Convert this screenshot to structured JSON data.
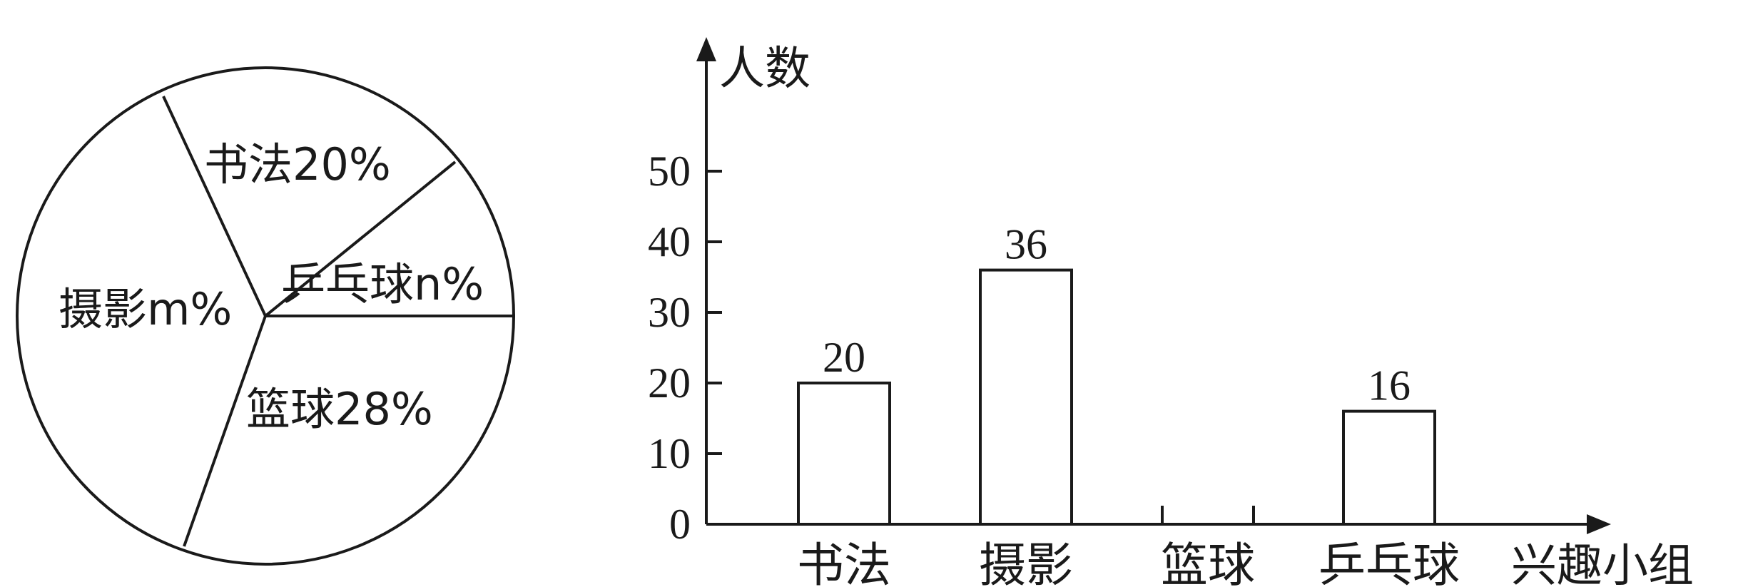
{
  "chart_data": [
    {
      "type": "pie",
      "slices": [
        {
          "label": "书法20%",
          "percent": 20
        },
        {
          "label": "乒乓球n%",
          "percent": null
        },
        {
          "label": "篮球28%",
          "percent": 28
        },
        {
          "label": "摄影m%",
          "percent": null
        }
      ]
    },
    {
      "type": "bar",
      "categories": [
        "书法",
        "摄影",
        "篮球",
        "乒乓球"
      ],
      "values": [
        20,
        36,
        null,
        16
      ],
      "value_labels": [
        "20",
        "36",
        "",
        "16"
      ],
      "ylabel": "人数",
      "xlabel": "兴趣小组",
      "ylim": [
        0,
        50
      ],
      "yticks": [
        "0",
        "10",
        "20",
        "30",
        "40",
        "50"
      ],
      "grid": false
    }
  ]
}
